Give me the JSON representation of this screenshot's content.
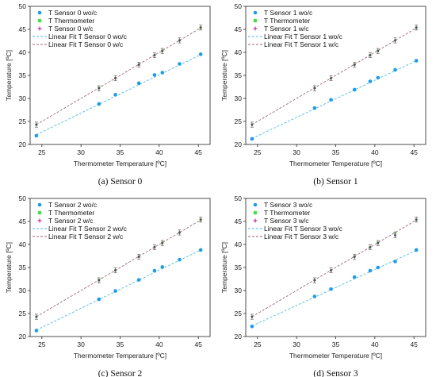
{
  "colors": {
    "wo_c": "#1e9be8",
    "thermometer": "#3ddc3d",
    "w_c": "#b5109a",
    "fit_wo_c": "#4cbbe6",
    "fit_w_c": "#a0607a",
    "errorbar": "#666666"
  },
  "chart_data": [
    {
      "type": "scatter",
      "caption": "(a)  Sensor 0",
      "xlabel": "Thermometer Temperature [ºC]",
      "ylabel": "Temperature [ºC]",
      "xlim": [
        23.5,
        46.5
      ],
      "ylim": [
        20,
        50
      ],
      "xticks": [
        25,
        30,
        35,
        40,
        45
      ],
      "yticks": [
        20,
        25,
        30,
        35,
        40,
        45,
        50
      ],
      "legend_position": "top-left",
      "x": [
        24.3,
        32.3,
        34.4,
        37.4,
        39.4,
        40.4,
        42.6,
        45.3
      ],
      "series": [
        {
          "name": "T Sensor 0 wo/c",
          "values": [
            21.9,
            28.8,
            30.8,
            33.3,
            35.1,
            35.6,
            37.5,
            39.6
          ]
        },
        {
          "name": "T Thermometer",
          "values": [
            24.3,
            32.3,
            34.4,
            37.4,
            39.4,
            40.4,
            42.6,
            45.3
          ]
        },
        {
          "name": "T Sensor 0 w/c",
          "values": [
            24.3,
            32.2,
            34.4,
            37.3,
            39.4,
            40.3,
            42.6,
            45.4
          ]
        }
      ],
      "fits": [
        {
          "name": "Linear Fit T Sensor 0 wo/c",
          "x": [
            24.3,
            45.3
          ],
          "y": [
            22.1,
            39.5
          ]
        },
        {
          "name": "Linear Fit T Sensor 0 w/c",
          "x": [
            24.3,
            45.3
          ],
          "y": [
            24.3,
            45.3
          ]
        }
      ]
    },
    {
      "type": "scatter",
      "caption": "(b)  Sensor 1",
      "xlabel": "Thermometer Temperature [ºC]",
      "ylabel": "Temperature [ºC]",
      "xlim": [
        23.5,
        46.5
      ],
      "ylim": [
        20,
        50
      ],
      "xticks": [
        25,
        30,
        35,
        40,
        45
      ],
      "yticks": [
        20,
        25,
        30,
        35,
        40,
        45,
        50
      ],
      "legend_position": "top-left",
      "x": [
        24.3,
        32.3,
        34.4,
        37.4,
        39.4,
        40.4,
        42.6,
        45.3
      ],
      "series": [
        {
          "name": "T Sensor 1 wo/c",
          "values": [
            21.2,
            27.9,
            29.7,
            31.9,
            33.7,
            34.5,
            36.2,
            38.2
          ]
        },
        {
          "name": "T Thermometer",
          "values": [
            24.3,
            32.3,
            34.4,
            37.4,
            39.4,
            40.4,
            42.6,
            45.3
          ]
        },
        {
          "name": "T Sensor 1 w/c",
          "values": [
            24.3,
            32.2,
            34.4,
            37.3,
            39.4,
            40.3,
            42.6,
            45.4
          ]
        }
      ],
      "fits": [
        {
          "name": "Linear Fit T Sensor 1 wo/c",
          "x": [
            24.3,
            45.3
          ],
          "y": [
            21.3,
            38.2
          ]
        },
        {
          "name": "Linear Fit T Sensor 1 w/c",
          "x": [
            24.3,
            45.3
          ],
          "y": [
            24.3,
            45.3
          ]
        }
      ]
    },
    {
      "type": "scatter",
      "caption": "(c)  Sensor 2",
      "xlabel": "Thermometer Temperature [ºC]",
      "ylabel": "Temperature [ºC]",
      "xlim": [
        23.5,
        46.5
      ],
      "ylim": [
        20,
        50
      ],
      "xticks": [
        25,
        30,
        35,
        40,
        45
      ],
      "yticks": [
        20,
        25,
        30,
        35,
        40,
        45,
        50
      ],
      "legend_position": "top-left",
      "x": [
        24.3,
        32.3,
        34.4,
        37.4,
        39.4,
        40.4,
        42.6,
        45.3
      ],
      "series": [
        {
          "name": "T Sensor 2 wo/c",
          "values": [
            21.3,
            28.1,
            29.9,
            32.3,
            34.3,
            35.1,
            36.7,
            38.8
          ]
        },
        {
          "name": "T Thermometer",
          "values": [
            24.3,
            32.3,
            34.4,
            37.4,
            39.4,
            40.4,
            42.6,
            45.3
          ]
        },
        {
          "name": "T Sensor 2 w/c",
          "values": [
            24.3,
            32.2,
            34.4,
            37.3,
            39.4,
            40.3,
            42.6,
            45.4
          ]
        }
      ],
      "fits": [
        {
          "name": "Linear Fit T Sensor 2 wo/c",
          "x": [
            24.3,
            45.3
          ],
          "y": [
            21.4,
            38.8
          ]
        },
        {
          "name": "Linear Fit T Sensor 2 w/c",
          "x": [
            24.3,
            45.3
          ],
          "y": [
            24.3,
            45.3
          ]
        }
      ]
    },
    {
      "type": "scatter",
      "caption": "(d)  Sensor 3",
      "xlabel": "Thermometer Temperature [ºC]",
      "ylabel": "Temperature [ºC]",
      "xlim": [
        23.5,
        46.5
      ],
      "ylim": [
        20,
        50
      ],
      "xticks": [
        25,
        30,
        35,
        40,
        45
      ],
      "yticks": [
        20,
        25,
        30,
        35,
        40,
        45,
        50
      ],
      "legend_position": "top-left",
      "x": [
        24.3,
        32.3,
        34.4,
        37.4,
        39.4,
        40.4,
        42.6,
        45.3
      ],
      "series": [
        {
          "name": "T Sensor 3 wo/c",
          "values": [
            22.2,
            28.7,
            30.3,
            32.9,
            34.3,
            35.0,
            36.3,
            38.8
          ]
        },
        {
          "name": "T Thermometer",
          "values": [
            24.3,
            32.3,
            34.4,
            37.4,
            39.4,
            40.4,
            42.6,
            45.3
          ]
        },
        {
          "name": "T Sensor 3 w/c",
          "values": [
            24.3,
            32.2,
            34.4,
            37.3,
            39.4,
            40.3,
            42.0,
            45.4
          ]
        }
      ],
      "fits": [
        {
          "name": "Linear Fit T Sensor 3 wo/c",
          "x": [
            24.3,
            45.3
          ],
          "y": [
            22.3,
            38.7
          ]
        },
        {
          "name": "Linear Fit T Sensor 3 w/c",
          "x": [
            24.3,
            45.3
          ],
          "y": [
            24.3,
            45.3
          ]
        }
      ]
    }
  ]
}
